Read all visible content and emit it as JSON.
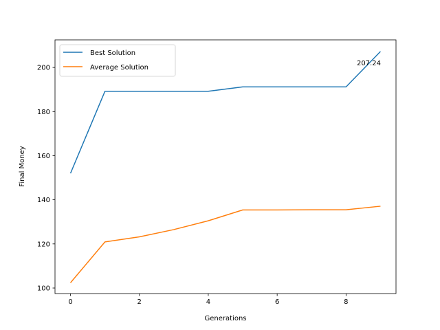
{
  "chart_data": {
    "type": "line",
    "title": "",
    "xlabel": "Generations",
    "ylabel": "Final Money",
    "x": [
      0,
      1,
      2,
      3,
      4,
      5,
      6,
      7,
      8,
      9
    ],
    "xlim": [
      -0.45,
      9.45
    ],
    "ylim": [
      97.5,
      212.5
    ],
    "xticks": [
      0,
      2,
      4,
      6,
      8
    ],
    "yticks": [
      100,
      120,
      140,
      160,
      180,
      200
    ],
    "grid": false,
    "legend_position": "upper left",
    "series": [
      {
        "name": "Best Solution",
        "color": "#1f77b4",
        "values": [
          152.0,
          189.2,
          189.2,
          189.2,
          189.2,
          191.2,
          191.2,
          191.2,
          191.2,
          207.24
        ]
      },
      {
        "name": "Average Solution",
        "color": "#ff7f0e",
        "values": [
          102.4,
          120.9,
          123.2,
          126.5,
          130.5,
          135.4,
          135.4,
          135.5,
          135.5,
          137.1
        ]
      }
    ],
    "annotations": [
      {
        "text": "207.24",
        "x": 9,
        "y": 207.24
      }
    ]
  }
}
